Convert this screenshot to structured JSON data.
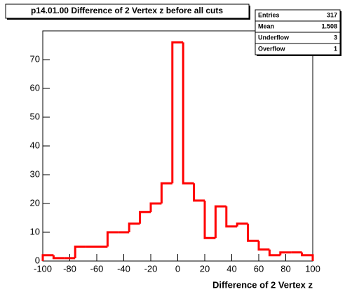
{
  "chart_data": {
    "type": "histogram",
    "title": "p14.01.00 Difference of 2 Vertex z before all cuts",
    "x_label": "Difference of 2 Vertex z",
    "bins": [
      -100,
      -92,
      -84,
      -76,
      -68,
      -60,
      -52,
      -44,
      -36,
      -28,
      -20,
      -12,
      -4,
      4,
      12,
      20,
      28,
      36,
      44,
      52,
      60,
      68,
      76,
      84,
      92,
      100
    ],
    "values": [
      2,
      1,
      1,
      5,
      5,
      5,
      10,
      10,
      13,
      17,
      20,
      27,
      76,
      27,
      21,
      8,
      19,
      12,
      13,
      7,
      4,
      2,
      3,
      3,
      2
    ],
    "color": "#ff0000",
    "xlim": [
      -100,
      100
    ],
    "xticks": [
      -100,
      -80,
      -60,
      -40,
      -20,
      0,
      20,
      40,
      60,
      80,
      100
    ],
    "ylim": [
      0,
      80
    ],
    "yticks": [
      0,
      10,
      20,
      30,
      40,
      50,
      60,
      70
    ],
    "stats": [
      {
        "label": "Entries",
        "value": 317
      },
      {
        "label": "Mean",
        "value": 1.508
      },
      {
        "label": "Underflow",
        "value": 3
      },
      {
        "label": "Overflow",
        "value": 1
      }
    ]
  }
}
